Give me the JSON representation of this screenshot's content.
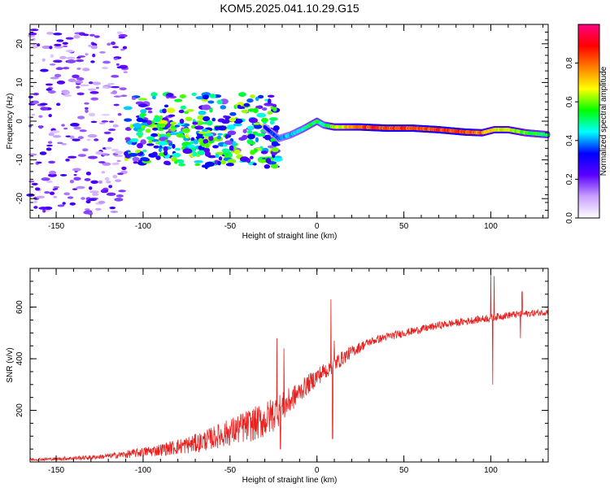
{
  "chart_data": [
    {
      "type": "heatmap",
      "title": "KOM5.2025.041.10.29.G15",
      "xlabel": "Height of straight line (km)",
      "ylabel": "Frequency (Hz)",
      "xlim": [
        -165,
        133
      ],
      "ylim": [
        -25,
        25
      ],
      "xticks": [
        "-150",
        "-100",
        "-50",
        "0",
        "50",
        "100"
      ],
      "yticks": [
        "-20",
        "-10",
        "0",
        "10",
        "20"
      ],
      "colorbar": {
        "label": "Normalized spectral amplitude",
        "ticks": [
          "0.0",
          "0.2",
          "0.4",
          "0.6",
          "0.8"
        ],
        "range": [
          0,
          1
        ],
        "colors": [
          "#ffffff",
          "#c8a0ff",
          "#5a00ff",
          "#0000ff",
          "#00ffff",
          "#00ff00",
          "#ffff00",
          "#ff8000",
          "#ff0000",
          "#ff0080"
        ]
      },
      "noise_region": {
        "x": [
          -165,
          -110
        ],
        "y": [
          -24,
          24
        ],
        "level": 0.15
      },
      "scatter_region": {
        "x": [
          -110,
          -22
        ],
        "y": [
          -14,
          7
        ],
        "level": 0.45
      },
      "main_trace": [
        {
          "x": -30,
          "y": -1.5,
          "a": 0.35
        },
        {
          "x": -22,
          "y": -4.5,
          "a": 0.4
        },
        {
          "x": -15,
          "y": -3.5,
          "a": 0.45
        },
        {
          "x": -8,
          "y": -2.0,
          "a": 0.5
        },
        {
          "x": 0,
          "y": 0.0,
          "a": 0.55
        },
        {
          "x": 4,
          "y": -1.0,
          "a": 0.5
        },
        {
          "x": 10,
          "y": -1.5,
          "a": 0.65
        },
        {
          "x": 25,
          "y": -1.5,
          "a": 0.85
        },
        {
          "x": 40,
          "y": -1.8,
          "a": 0.9
        },
        {
          "x": 55,
          "y": -1.8,
          "a": 0.85
        },
        {
          "x": 70,
          "y": -2.2,
          "a": 0.9
        },
        {
          "x": 85,
          "y": -2.8,
          "a": 0.88
        },
        {
          "x": 95,
          "y": -3.0,
          "a": 0.8
        },
        {
          "x": 102,
          "y": -2.2,
          "a": 0.7
        },
        {
          "x": 110,
          "y": -2.2,
          "a": 0.7
        },
        {
          "x": 120,
          "y": -3.0,
          "a": 0.6
        },
        {
          "x": 133,
          "y": -3.5,
          "a": 0.55
        }
      ]
    },
    {
      "type": "line",
      "xlabel": "Height of straight line (km)",
      "ylabel": "SNR (v/v)",
      "xlim": [
        -165,
        133
      ],
      "ylim": [
        0,
        750
      ],
      "xticks": [
        "-150",
        "-100",
        "-50",
        "0",
        "50",
        "100"
      ],
      "yticks": [
        "200",
        "400",
        "600"
      ],
      "line_color": "#e8201e",
      "trend": [
        {
          "x": -165,
          "y": 8
        },
        {
          "x": -150,
          "y": 10
        },
        {
          "x": -130,
          "y": 15
        },
        {
          "x": -110,
          "y": 25
        },
        {
          "x": -90,
          "y": 40
        },
        {
          "x": -70,
          "y": 60
        },
        {
          "x": -55,
          "y": 90
        },
        {
          "x": -40,
          "y": 120
        },
        {
          "x": -30,
          "y": 140
        },
        {
          "x": -20,
          "y": 190
        },
        {
          "x": -10,
          "y": 260
        },
        {
          "x": 0,
          "y": 320
        },
        {
          "x": 10,
          "y": 370
        },
        {
          "x": 20,
          "y": 420
        },
        {
          "x": 30,
          "y": 460
        },
        {
          "x": 40,
          "y": 480
        },
        {
          "x": 50,
          "y": 495
        },
        {
          "x": 60,
          "y": 510
        },
        {
          "x": 70,
          "y": 525
        },
        {
          "x": 80,
          "y": 535
        },
        {
          "x": 90,
          "y": 545
        },
        {
          "x": 100,
          "y": 555
        },
        {
          "x": 110,
          "y": 565
        },
        {
          "x": 120,
          "y": 570
        },
        {
          "x": 133,
          "y": 578
        }
      ],
      "noise_amplitude": [
        {
          "x": -165,
          "y": 6
        },
        {
          "x": -120,
          "y": 12
        },
        {
          "x": -90,
          "y": 30
        },
        {
          "x": -60,
          "y": 55
        },
        {
          "x": -40,
          "y": 80
        },
        {
          "x": -25,
          "y": 90
        },
        {
          "x": -10,
          "y": 50
        },
        {
          "x": 10,
          "y": 40
        },
        {
          "x": 30,
          "y": 20
        },
        {
          "x": 60,
          "y": 18
        },
        {
          "x": 100,
          "y": 18
        },
        {
          "x": 133,
          "y": 16
        }
      ],
      "spikes": [
        {
          "x": -23,
          "y": 480
        },
        {
          "x": -21,
          "y": 50
        },
        {
          "x": -19,
          "y": 440
        },
        {
          "x": 7,
          "y": 380
        },
        {
          "x": 8,
          "y": 630
        },
        {
          "x": 9,
          "y": 90
        },
        {
          "x": 10,
          "y": 470
        },
        {
          "x": 99,
          "y": 540
        },
        {
          "x": 100,
          "y": 740
        },
        {
          "x": 101,
          "y": 300
        },
        {
          "x": 102,
          "y": 720
        },
        {
          "x": 117,
          "y": 480
        },
        {
          "x": 118,
          "y": 660
        }
      ]
    }
  ]
}
